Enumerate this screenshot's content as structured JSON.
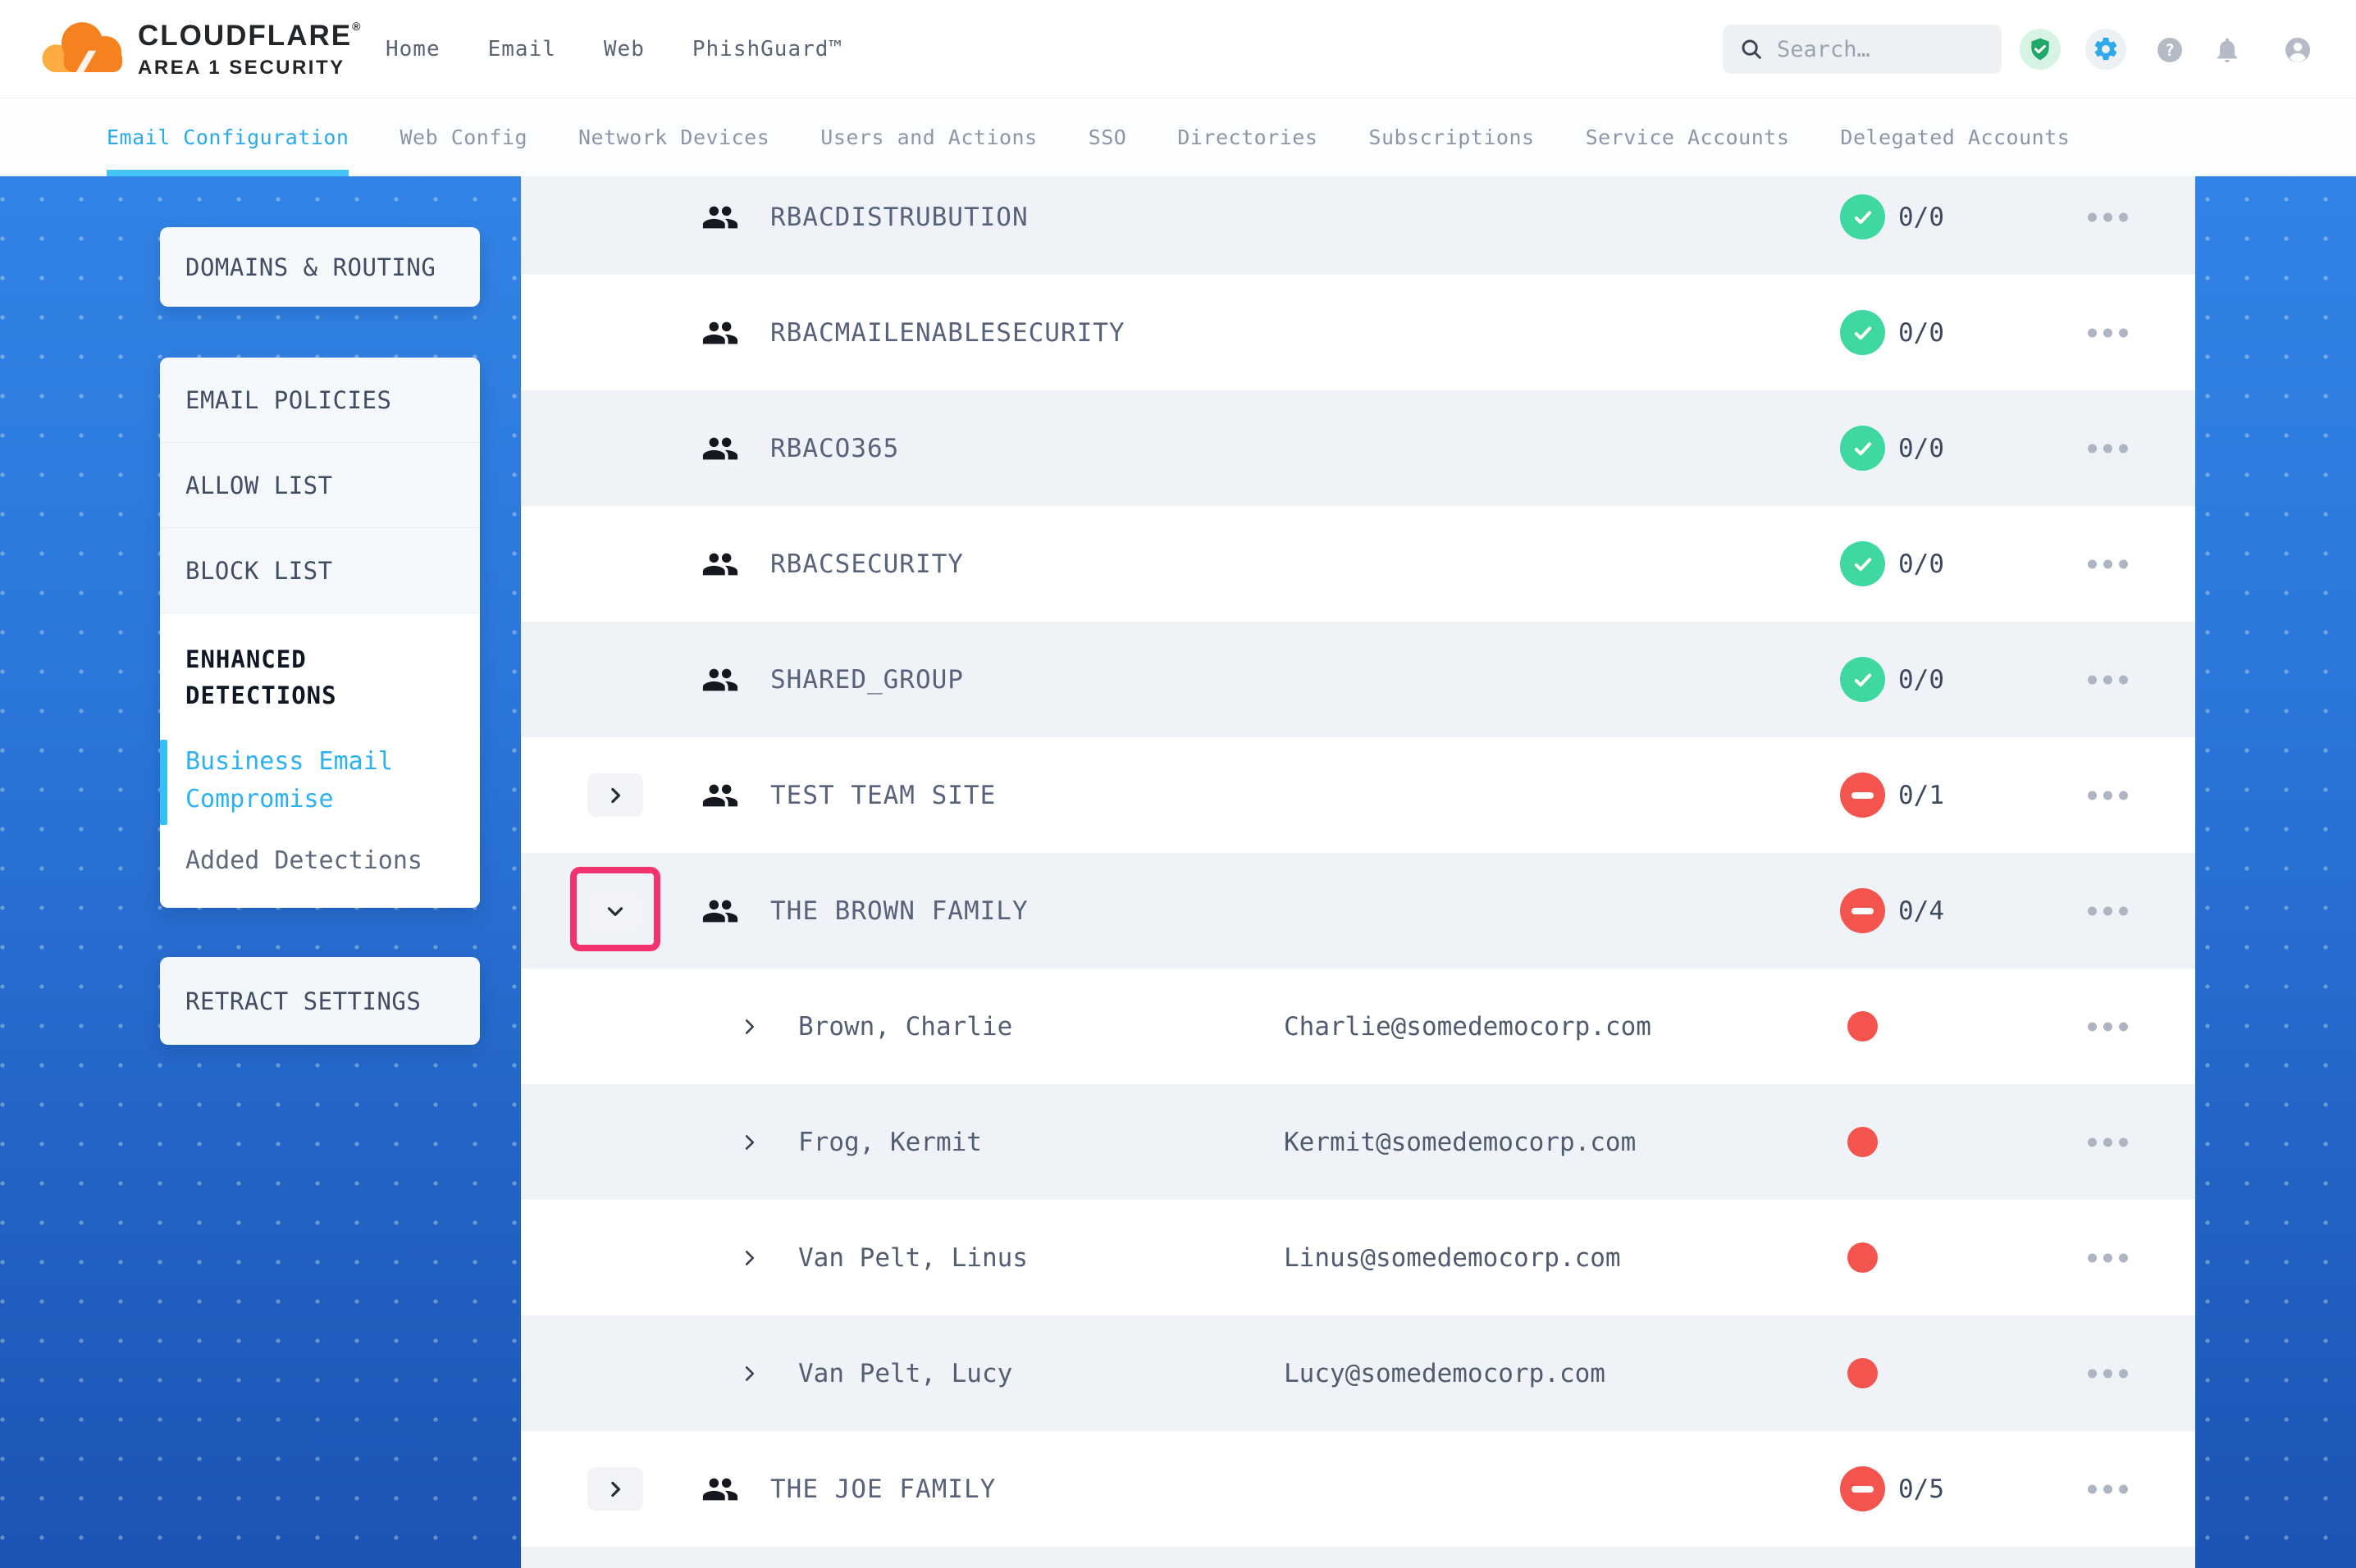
{
  "colors": {
    "accent_cyan": "#2BAAE8",
    "underline_cyan": "#44C4F5",
    "link_cyan": "#2BB1F2",
    "green_ok": "#3FD8A1",
    "red_blocked": "#F3554E",
    "annotation_pink": "#F2336E",
    "bg_blue_top": "#3488EA",
    "bg_blue_bottom": "#1B54B4",
    "brand_orange": "#F6821F",
    "brand_orange_light": "#FBAD41"
  },
  "header": {
    "logo_line1": "CLOUDFLARE",
    "logo_reg_mark": "®",
    "logo_line2": "AREA 1 SECURITY",
    "nav": [
      {
        "label": "Home"
      },
      {
        "label": "Email"
      },
      {
        "label": "Web"
      },
      {
        "label": "PhishGuard™"
      }
    ],
    "search_placeholder": "Search…",
    "icons": [
      "shield-check-icon",
      "gear-icon",
      "help-icon",
      "bell-icon",
      "user-icon"
    ]
  },
  "tabs": [
    {
      "label": "Email Configuration",
      "active": true
    },
    {
      "label": "Web Config",
      "active": false
    },
    {
      "label": "Network Devices",
      "active": false
    },
    {
      "label": "Users and Actions",
      "active": false
    },
    {
      "label": "SSO",
      "active": false
    },
    {
      "label": "Directories",
      "active": false
    },
    {
      "label": "Subscriptions",
      "active": false
    },
    {
      "label": "Service Accounts",
      "active": false
    },
    {
      "label": "Delegated Accounts",
      "active": false
    }
  ],
  "sidebar": {
    "domains_routing": "DOMAINS & ROUTING",
    "email_policies": "EMAIL POLICIES",
    "allow_list": "ALLOW LIST",
    "block_list": "BLOCK LIST",
    "enhanced_detections": "ENHANCED DETECTIONS",
    "business_email_compromise": "Business Email Compromise",
    "added_detections": "Added Detections",
    "retract_settings": "RETRACT SETTINGS"
  },
  "main": {
    "rows": [
      {
        "type": "group",
        "name": "RBACDISTRUBUTION",
        "status": "ok",
        "count": "0/0"
      },
      {
        "type": "group",
        "name": "RBACMAILENABLESECURITY",
        "status": "ok",
        "count": "0/0"
      },
      {
        "type": "group",
        "name": "RBACO365",
        "status": "ok",
        "count": "0/0"
      },
      {
        "type": "group",
        "name": "RBACSECURITY",
        "status": "ok",
        "count": "0/0"
      },
      {
        "type": "group",
        "name": "SHARED_GROUP",
        "status": "ok",
        "count": "0/0"
      },
      {
        "type": "group",
        "name": "TEST TEAM SITE",
        "status": "blocked",
        "count": "0/1",
        "expander": "right"
      },
      {
        "type": "group",
        "name": "THE BROWN FAMILY",
        "status": "blocked",
        "count": "0/4",
        "expander": "down",
        "annotated": true
      },
      {
        "type": "member",
        "name": "Brown, Charlie",
        "email": "Charlie@somedemocorp.com",
        "status": "dot"
      },
      {
        "type": "member",
        "name": "Frog, Kermit",
        "email": "Kermit@somedemocorp.com",
        "status": "dot"
      },
      {
        "type": "member",
        "name": "Van Pelt, Linus",
        "email": "Linus@somedemocorp.com",
        "status": "dot"
      },
      {
        "type": "member",
        "name": "Van Pelt, Lucy",
        "email": "Lucy@somedemocorp.com",
        "status": "dot"
      },
      {
        "type": "group",
        "name": "THE JOE FAMILY",
        "status": "blocked",
        "count": "0/5",
        "expander": "right"
      }
    ]
  }
}
